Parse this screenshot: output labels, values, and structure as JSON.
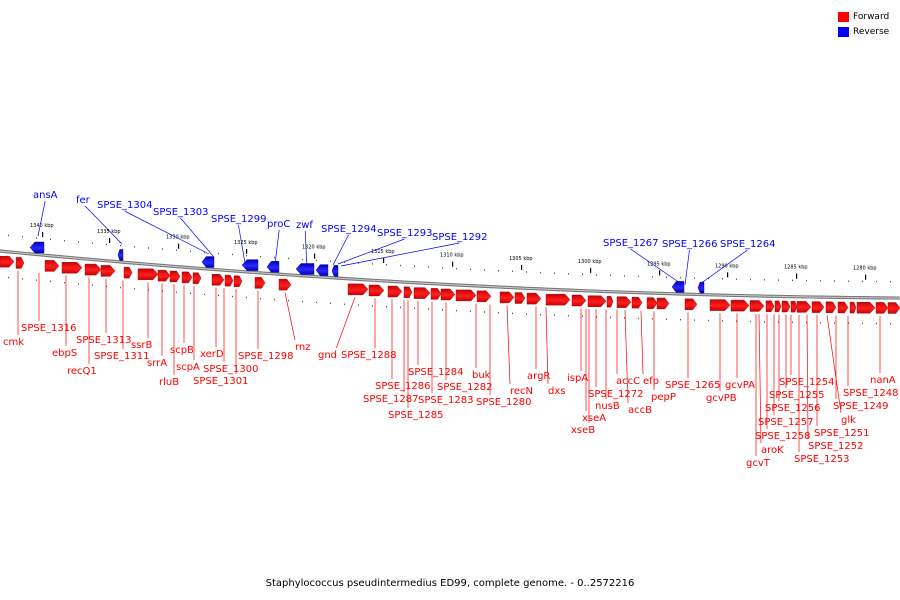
{
  "legend": {
    "forward_label": "Forward",
    "reverse_label": "Reverse",
    "forward_color": "#ff0000",
    "reverse_color": "#0000ff"
  },
  "caption": "Staphylococcus pseudintermedius ED99, complete genome. - 0..2572216",
  "ticks": [
    "1340 kbp",
    "1335 kbp",
    "1330 kbp",
    "1325 kbp",
    "1320 kbp",
    "1315 kbp",
    "1310 kbp",
    "1305 kbp",
    "1300 kbp",
    "1295 kbp",
    "1290 kbp",
    "1285 kbp",
    "1280 kbp"
  ],
  "reverse_genes": [
    "ansA",
    "fer",
    "SPSE_1304",
    "SPSE_1303",
    "SPSE_1299",
    "proC",
    "zwf",
    "SPSE_1294",
    "SPSE_1293",
    "SPSE_1292",
    "SPSE_1267",
    "SPSE_1266",
    "SPSE_1264"
  ],
  "forward_genes": [
    "cmk",
    "SPSE_1316",
    "ebpS",
    "recQ1",
    "SPSE_1313",
    "SPSE_1311",
    "ssrB",
    "srrA",
    "rluB",
    "scpB",
    "scpA",
    "xerD",
    "SPSE_1300",
    "SPSE_1301",
    "SPSE_1298",
    "rnz",
    "gnd",
    "SPSE_1288",
    "SPSE_1286",
    "SPSE_1287",
    "SPSE_1285",
    "SPSE_1284",
    "SPSE_1283",
    "SPSE_1282",
    "buk",
    "SPSE_1280",
    "recN",
    "argR",
    "dxs",
    "ispA",
    "xseA",
    "xseB",
    "SPSE_1272",
    "nusB",
    "accC",
    "accB",
    "efp",
    "pepP",
    "SPSE_1265",
    "gcvPA",
    "gcvPB",
    "aroK",
    "gcvT",
    "SPSE_1258",
    "SPSE_1257",
    "SPSE_1256",
    "SPSE_1255",
    "SPSE_1254",
    "SPSE_1253",
    "SPSE_1252",
    "SPSE_1251",
    "glk",
    "SPSE_1249",
    "SPSE_1248",
    "nanA"
  ]
}
